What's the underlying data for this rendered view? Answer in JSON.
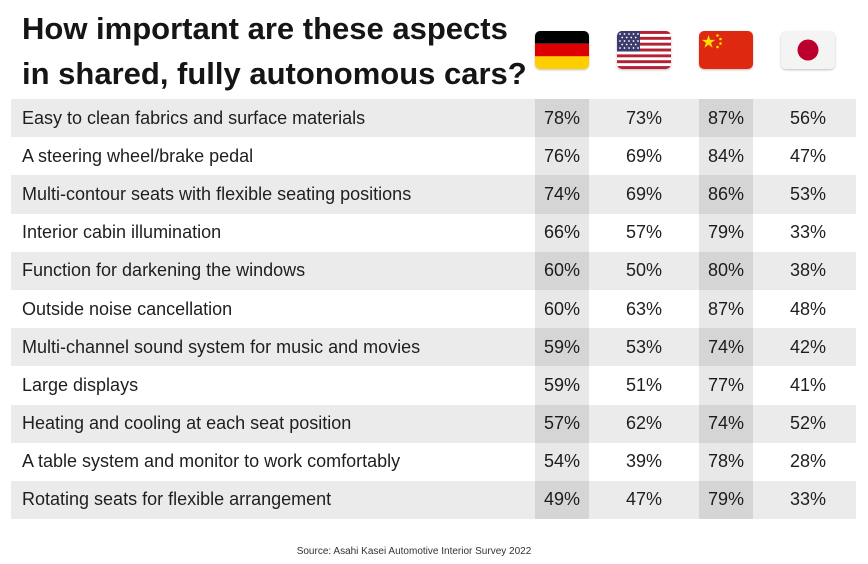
{
  "chart_data": {
    "type": "table",
    "title_lines": [
      "How important are these aspects",
      "in shared, fully autonomous cars?"
    ],
    "columns": [
      {
        "flag": "germany-flag-icon",
        "colors": [
          "#000000",
          "#dd0000",
          "#ffce00"
        ]
      },
      {
        "flag": "usa-flag-icon",
        "colors": [
          "#b22234",
          "#ffffff",
          "#3c3b6e"
        ]
      },
      {
        "flag": "china-flag-icon",
        "colors": [
          "#de2910",
          "#ffde00"
        ]
      },
      {
        "flag": "japan-flag-icon",
        "colors": [
          "#ffffff",
          "#bc002d"
        ]
      }
    ],
    "rows": [
      {
        "label": "Easy to clean fabrics and surface materials",
        "values": [
          "78%",
          "73%",
          "87%",
          "56%"
        ]
      },
      {
        "label": "A steering wheel/brake pedal",
        "values": [
          "76%",
          "69%",
          "84%",
          "47%"
        ]
      },
      {
        "label": "Multi-contour seats with flexible seating positions",
        "values": [
          "74%",
          "69%",
          "86%",
          "53%"
        ]
      },
      {
        "label": "Interior cabin illumination",
        "values": [
          "66%",
          "57%",
          "79%",
          "33%"
        ]
      },
      {
        "label": "Function for darkening the windows",
        "values": [
          "60%",
          "50%",
          "80%",
          "38%"
        ]
      },
      {
        "label": "Outside noise cancellation",
        "values": [
          "60%",
          "63%",
          "87%",
          "48%"
        ]
      },
      {
        "label": "Multi-channel sound system for music and movies",
        "values": [
          "59%",
          "53%",
          "74%",
          "42%"
        ]
      },
      {
        "label": "Large displays",
        "values": [
          "59%",
          "51%",
          "77%",
          "41%"
        ]
      },
      {
        "label": "Heating and cooling at each seat position",
        "values": [
          "57%",
          "62%",
          "74%",
          "52%"
        ]
      },
      {
        "label": "A table system and monitor to work comfortably",
        "values": [
          "54%",
          "39%",
          "78%",
          "28%"
        ]
      },
      {
        "label": "Rotating seats for flexible arrangement",
        "values": [
          "49%",
          "47%",
          "79%",
          "33%"
        ]
      }
    ],
    "source": "Source: Asahi Kasei Automotive Interior Survey 2022",
    "colors": {
      "row_band": "#ebebeb",
      "column_shade": "#dcdcdc",
      "text": "#1f1f1f"
    }
  }
}
